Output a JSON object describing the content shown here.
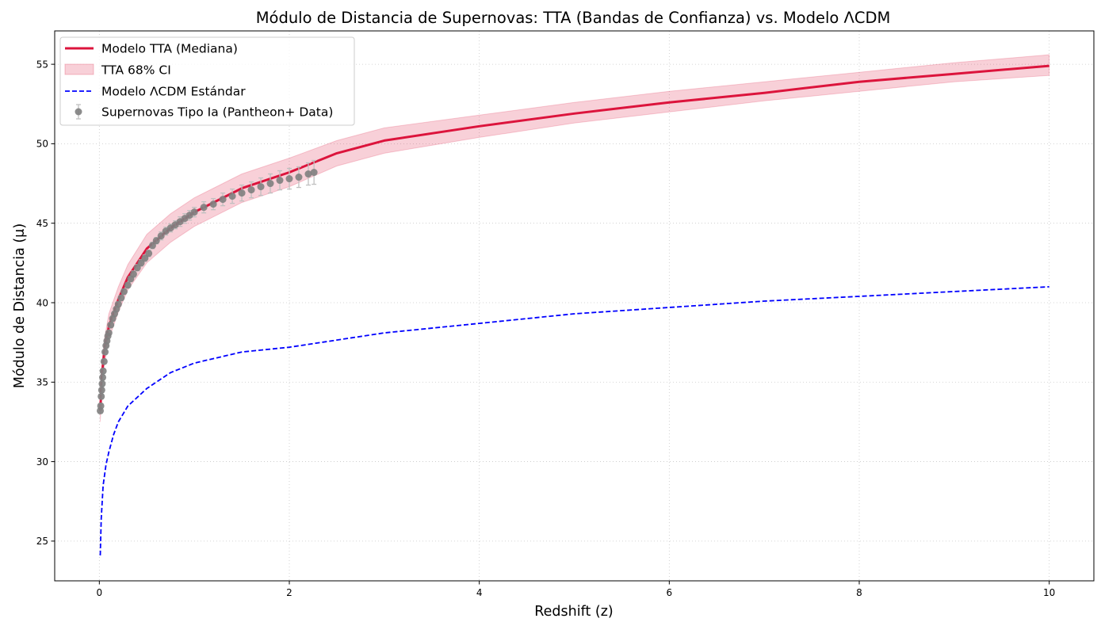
{
  "chart_data": {
    "type": "line",
    "title": "Módulo de Distancia de Supernovas: TTA (Bandas de Confianza) vs. Modelo ΛCDM",
    "xlabel": "Redshift (z)",
    "ylabel": "Módulo de Distancia (μ)",
    "xlim": [
      -0.47,
      10.47
    ],
    "ylim": [
      22.5,
      57.1
    ],
    "xticks": [
      0,
      2,
      4,
      6,
      8,
      10
    ],
    "yticks": [
      25,
      30,
      35,
      40,
      45,
      50,
      55
    ],
    "grid": true,
    "legend_position": "top-left",
    "colors": {
      "tta_median": "#dc143c",
      "tta_band": "#dc143c",
      "lcdm": "#0000ff",
      "supernovae": "#808080",
      "errorbar": "#c0c0c0"
    },
    "legend": [
      {
        "label": "Modelo TTA (Mediana)",
        "kind": "line"
      },
      {
        "label": "TTA 68% CI",
        "kind": "band"
      },
      {
        "label": "Modelo ΛCDM Estándar",
        "kind": "dashed"
      },
      {
        "label": "Supernovas Tipo Ia (Pantheon+ Data)",
        "kind": "errorpoint"
      }
    ],
    "series": [
      {
        "name": "Modelo TTA (Mediana)",
        "style": "solid",
        "x": [
          0.01,
          0.03,
          0.05,
          0.1,
          0.2,
          0.3,
          0.5,
          0.75,
          1.0,
          1.5,
          2.0,
          2.5,
          3.0,
          4.0,
          5.0,
          6.0,
          7.0,
          8.0,
          9.0,
          10.0
        ],
        "y": [
          33.2,
          35.6,
          36.8,
          38.5,
          40.2,
          41.6,
          43.4,
          44.7,
          45.7,
          47.2,
          48.2,
          49.4,
          50.2,
          51.1,
          51.9,
          52.6,
          53.2,
          53.9,
          54.4,
          54.9
        ]
      },
      {
        "name": "TTA 68% CI",
        "style": "band",
        "x": [
          0.01,
          0.03,
          0.05,
          0.1,
          0.2,
          0.3,
          0.5,
          0.75,
          1.0,
          1.5,
          2.0,
          2.5,
          3.0,
          4.0,
          5.0,
          6.0,
          7.0,
          8.0,
          9.0,
          10.0
        ],
        "lower": [
          32.5,
          34.9,
          36.0,
          37.7,
          39.4,
          40.8,
          42.5,
          43.8,
          44.8,
          46.3,
          47.3,
          48.6,
          49.4,
          50.4,
          51.3,
          52.0,
          52.7,
          53.3,
          53.9,
          54.3
        ],
        "upper": [
          33.9,
          36.3,
          37.6,
          39.3,
          41.0,
          42.4,
          44.3,
          45.6,
          46.6,
          48.1,
          49.1,
          50.2,
          51.0,
          51.8,
          52.6,
          53.3,
          53.9,
          54.5,
          55.1,
          55.6
        ]
      },
      {
        "name": "Modelo ΛCDM Estándar",
        "style": "dashed",
        "x": [
          0.01,
          0.02,
          0.04,
          0.07,
          0.1,
          0.15,
          0.2,
          0.3,
          0.5,
          0.75,
          1.0,
          1.5,
          2.0,
          3.0,
          4.0,
          5.0,
          6.0,
          7.0,
          8.0,
          9.0,
          10.0
        ],
        "y": [
          24.1,
          26.4,
          28.5,
          29.8,
          30.6,
          31.7,
          32.5,
          33.5,
          34.6,
          35.6,
          36.2,
          36.9,
          37.2,
          38.1,
          38.7,
          39.3,
          39.7,
          40.1,
          40.4,
          40.7,
          41.0
        ]
      },
      {
        "name": "Supernovas Tipo Ia (Pantheon+ Data)",
        "style": "errorbar",
        "x": [
          0.01,
          0.015,
          0.02,
          0.025,
          0.03,
          0.035,
          0.04,
          0.05,
          0.06,
          0.07,
          0.08,
          0.09,
          0.1,
          0.12,
          0.14,
          0.16,
          0.18,
          0.2,
          0.23,
          0.26,
          0.3,
          0.33,
          0.36,
          0.4,
          0.44,
          0.48,
          0.52,
          0.56,
          0.6,
          0.65,
          0.7,
          0.75,
          0.8,
          0.85,
          0.9,
          0.95,
          1.0,
          1.1,
          1.2,
          1.3,
          1.4,
          1.5,
          1.6,
          1.7,
          1.8,
          1.9,
          2.0,
          2.1,
          2.2,
          2.26
        ],
        "y": [
          33.2,
          33.5,
          34.1,
          34.5,
          34.9,
          35.3,
          35.7,
          36.3,
          36.9,
          37.3,
          37.6,
          37.9,
          38.1,
          38.6,
          39.0,
          39.3,
          39.6,
          39.9,
          40.3,
          40.7,
          41.1,
          41.5,
          41.8,
          42.2,
          42.5,
          42.8,
          43.1,
          43.6,
          43.9,
          44.2,
          44.5,
          44.7,
          44.9,
          45.1,
          45.3,
          45.5,
          45.7,
          46.0,
          46.2,
          46.5,
          46.7,
          46.9,
          47.1,
          47.3,
          47.5,
          47.7,
          47.8,
          47.9,
          48.1,
          48.2
        ],
        "yerr": [
          0.15,
          0.15,
          0.15,
          0.15,
          0.15,
          0.15,
          0.15,
          0.15,
          0.15,
          0.15,
          0.15,
          0.15,
          0.15,
          0.15,
          0.15,
          0.15,
          0.15,
          0.15,
          0.15,
          0.15,
          0.15,
          0.15,
          0.2,
          0.2,
          0.2,
          0.2,
          0.2,
          0.2,
          0.2,
          0.25,
          0.25,
          0.25,
          0.25,
          0.3,
          0.3,
          0.3,
          0.3,
          0.35,
          0.35,
          0.4,
          0.45,
          0.5,
          0.5,
          0.55,
          0.6,
          0.6,
          0.65,
          0.65,
          0.7,
          0.75
        ]
      }
    ]
  }
}
